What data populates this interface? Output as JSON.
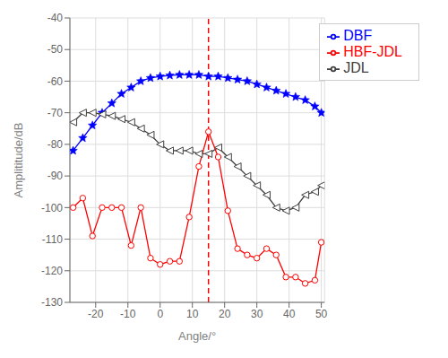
{
  "chart_data": {
    "type": "line",
    "xlabel": "Angle/°",
    "ylabel": "Amplititude/dB",
    "xlim": [
      -28,
      51
    ],
    "ylim": [
      -130,
      -40
    ],
    "xticks": [
      -20,
      -10,
      0,
      10,
      20,
      30,
      40,
      50
    ],
    "yticks": [
      -130,
      -120,
      -110,
      -100,
      -90,
      -80,
      -70,
      -60,
      -50,
      -40
    ],
    "x": [
      -27,
      -24,
      -21,
      -18,
      -15,
      -12,
      -9,
      -6,
      -3,
      0,
      3,
      6,
      9,
      12,
      15,
      18,
      21,
      24,
      27,
      30,
      33,
      36,
      39,
      42,
      45,
      48,
      50
    ],
    "series": [
      {
        "name": "DBF",
        "color": "#0000ff",
        "marker": "star",
        "values": [
          -82,
          -78,
          -74,
          -70,
          -67,
          -64,
          -62,
          -60,
          -59,
          -58.5,
          -58.2,
          -58,
          -58,
          -58,
          -58.5,
          -58.5,
          -59,
          -59.5,
          -60,
          -61,
          -62,
          -63,
          -64,
          -65,
          -66,
          -68,
          -70
        ]
      },
      {
        "name": "JDL",
        "color": "#404040",
        "marker": "triangle-left",
        "values": [
          -73,
          -70,
          -70,
          -70.5,
          -71,
          -72,
          -73,
          -75,
          -77,
          -80,
          -82,
          -82,
          -82,
          -83,
          -83,
          -81,
          -84,
          -87,
          -90,
          -93,
          -96,
          -100,
          -101,
          -100,
          -96,
          -95,
          -93
        ]
      },
      {
        "name": "HBF-JDL",
        "color": "#ff0000",
        "marker": "circle",
        "values": [
          -100,
          -97,
          -109,
          -100,
          -100,
          -100,
          -112,
          -100,
          -116,
          -118,
          -117,
          -117,
          -103,
          -87,
          -76,
          -84,
          -101,
          -113,
          -115,
          -116,
          -113,
          -115,
          -122,
          -122,
          -124,
          -123,
          -111
        ]
      }
    ],
    "vlines": [
      {
        "x": 15,
        "color": "#ff0000",
        "line_style": "dashed"
      }
    ],
    "grid": true,
    "legend": "upper right"
  }
}
